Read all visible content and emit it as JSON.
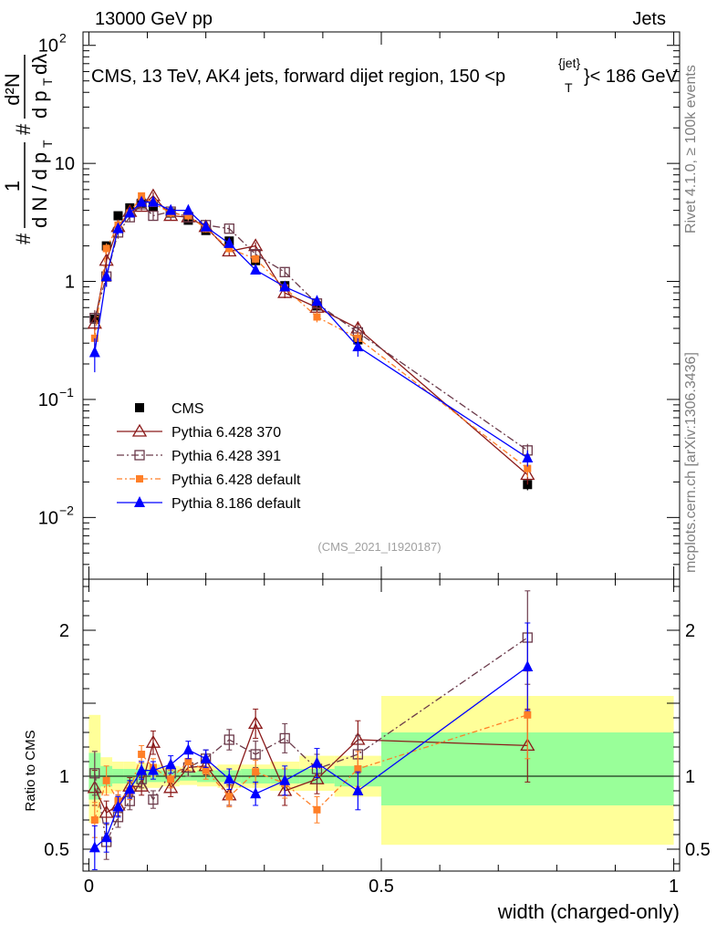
{
  "header": {
    "left": "13000 GeV pp",
    "right": "Jets"
  },
  "plot_title": "CMS, 13 TeV, AK4 jets, forward dijet region, 150 <p",
  "plot_title_sup": "{jet}",
  "plot_title_sub": "T",
  "plot_title_end": "}< 186 GeV",
  "y_axis_label": {
    "hash1": "#",
    "frac1_num": "1",
    "frac1_den": "d N / d p",
    "hash2": "#",
    "frac2_num": "d²N",
    "frac2_den": "d p",
    "dlambda": "dλ",
    "sub_t": "T"
  },
  "side_labels": {
    "rivet": "Rivet 4.1.0, ≥ 100k events",
    "mcplots": "mcplots.cern.ch [arXiv:1306.3436]"
  },
  "watermark": "(CMS_2021_I1920187)",
  "ratio_ylabel": "Ratio to CMS",
  "xlabel": "width (charged-only)",
  "colors": {
    "cms": "#000000",
    "p370": "#8b1a1a",
    "p391": "#6b3a4a",
    "pdef": "#ff7f27",
    "p8": "#0000ff",
    "band_yellow": "#ffff99",
    "band_green": "#99ff99"
  },
  "chart_data": {
    "type": "line",
    "x": [
      0.01,
      0.03,
      0.05,
      0.07,
      0.09,
      0.11,
      0.14,
      0.17,
      0.2,
      0.24,
      0.285,
      0.335,
      0.39,
      0.46,
      0.75
    ],
    "x_edges": [
      0.0,
      0.02,
      0.04,
      0.06,
      0.08,
      0.1,
      0.125,
      0.155,
      0.185,
      0.22,
      0.26,
      0.31,
      0.36,
      0.42,
      0.5,
      1.0
    ],
    "xlim": [
      -0.01,
      1.01
    ],
    "xticks": [
      0,
      0.5,
      1
    ],
    "xtick_labels": [
      "0",
      "0.5",
      "1"
    ],
    "main": {
      "yscale": "log",
      "ylim": [
        0.003,
        130
      ],
      "yticks": [
        0.01,
        0.1,
        1,
        10,
        100
      ],
      "ytick_labels": [
        {
          "base": "10",
          "exp": "−2"
        },
        {
          "base": "10",
          "exp": "−1"
        },
        {
          "base": "1",
          "exp": ""
        },
        {
          "base": "10",
          "exp": ""
        },
        {
          "base": "10",
          "exp": "2"
        }
      ]
    },
    "ratio": {
      "ylim": [
        0.35,
        2.35
      ],
      "yticks": [
        0.5,
        1,
        2
      ],
      "ytick_labels": [
        "0.5",
        "1",
        "2"
      ]
    },
    "series": [
      {
        "name": "CMS",
        "key": "cms",
        "values": [
          0.48,
          2.0,
          3.6,
          4.2,
          4.6,
          4.3,
          3.8,
          3.3,
          2.7,
          2.2,
          1.5,
          0.92,
          0.62,
          0.32,
          0.019
        ],
        "errors": [
          0.06,
          0.15,
          0.2,
          0.2,
          0.2,
          0.2,
          0.15,
          0.12,
          0.1,
          0.09,
          0.07,
          0.05,
          0.04,
          0.02,
          0.002
        ],
        "ratio": [
          1,
          1,
          1,
          1,
          1,
          1,
          1,
          1,
          1,
          1,
          1,
          1,
          1,
          1,
          1
        ],
        "ratio_errors": [
          0,
          0,
          0,
          0,
          0,
          0,
          0,
          0,
          0,
          0,
          0,
          0,
          0,
          0,
          0
        ]
      },
      {
        "name": "Pythia 6.428 370",
        "key": "p370",
        "values": [
          0.44,
          1.5,
          2.9,
          3.9,
          4.3,
          5.3,
          3.6,
          3.5,
          2.9,
          1.8,
          2.0,
          0.8,
          0.6,
          0.4,
          0.023
        ],
        "errors": [
          0.08,
          0.2,
          0.3,
          0.3,
          0.3,
          0.4,
          0.3,
          0.3,
          0.2,
          0.15,
          0.15,
          0.08,
          0.06,
          0.05,
          0.004
        ],
        "ratio": [
          0.92,
          0.75,
          0.8,
          0.93,
          0.93,
          1.23,
          0.92,
          1.06,
          1.07,
          0.87,
          1.36,
          0.9,
          0.98,
          1.25,
          1.21
        ],
        "ratio_errors": [
          0.12,
          0.08,
          0.07,
          0.06,
          0.06,
          0.08,
          0.06,
          0.06,
          0.06,
          0.07,
          0.1,
          0.1,
          0.1,
          0.13,
          0.25
        ]
      },
      {
        "name": "Pythia 6.428 391",
        "key": "p391",
        "values": [
          0.49,
          1.1,
          2.6,
          3.5,
          4.5,
          3.6,
          3.9,
          3.5,
          3.0,
          2.8,
          1.7,
          1.2,
          0.65,
          0.37,
          0.037
        ],
        "errors": [
          0.08,
          0.2,
          0.3,
          0.3,
          0.3,
          0.3,
          0.3,
          0.3,
          0.2,
          0.2,
          0.15,
          0.1,
          0.06,
          0.05,
          0.005
        ],
        "ratio": [
          1.02,
          0.55,
          0.72,
          0.83,
          0.98,
          0.84,
          1.02,
          1.06,
          1.12,
          1.25,
          1.15,
          1.26,
          1.05,
          1.15,
          1.95
        ],
        "ratio_errors": [
          0.15,
          0.12,
          0.07,
          0.06,
          0.06,
          0.06,
          0.06,
          0.06,
          0.06,
          0.07,
          0.09,
          0.1,
          0.1,
          0.13,
          0.32
        ]
      },
      {
        "name": "Pythia 6.428 default",
        "key": "pdef",
        "values": [
          0.33,
          1.9,
          3.0,
          3.8,
          5.3,
          4.6,
          3.8,
          3.6,
          2.8,
          1.9,
          1.55,
          0.88,
          0.5,
          0.33,
          0.026
        ],
        "errors": [
          0.06,
          0.2,
          0.3,
          0.3,
          0.3,
          0.3,
          0.3,
          0.3,
          0.2,
          0.15,
          0.12,
          0.08,
          0.05,
          0.04,
          0.004
        ],
        "ratio": [
          0.7,
          0.97,
          0.83,
          0.9,
          1.15,
          1.06,
          0.98,
          1.1,
          1.04,
          0.86,
          1.03,
          0.95,
          0.77,
          1.05,
          1.42
        ],
        "ratio_errors": [
          0.12,
          0.1,
          0.07,
          0.06,
          0.06,
          0.06,
          0.06,
          0.06,
          0.06,
          0.07,
          0.08,
          0.1,
          0.09,
          0.12,
          0.3
        ]
      },
      {
        "name": "Pythia 8.186 default",
        "key": "p8",
        "values": [
          0.25,
          1.1,
          2.8,
          3.8,
          4.7,
          4.7,
          4.0,
          4.0,
          2.9,
          2.1,
          1.25,
          0.9,
          0.68,
          0.28,
          0.032
        ],
        "errors": [
          0.08,
          0.2,
          0.3,
          0.3,
          0.3,
          0.3,
          0.3,
          0.3,
          0.2,
          0.15,
          0.1,
          0.08,
          0.06,
          0.05,
          0.005
        ],
        "ratio": [
          0.51,
          0.58,
          0.79,
          0.91,
          1.04,
          1.04,
          1.08,
          1.18,
          1.12,
          0.98,
          0.88,
          0.97,
          1.09,
          0.9,
          1.75
        ],
        "ratio_errors": [
          0.15,
          0.1,
          0.07,
          0.06,
          0.06,
          0.06,
          0.06,
          0.06,
          0.06,
          0.07,
          0.08,
          0.1,
          0.1,
          0.13,
          0.3
        ]
      }
    ],
    "bands": {
      "yellow": [
        [
          0.68,
          1.42
        ],
        [
          0.88,
          1.13
        ],
        [
          0.9,
          1.1
        ],
        [
          0.9,
          1.1
        ],
        [
          0.91,
          1.09
        ],
        [
          0.92,
          1.08
        ],
        [
          0.93,
          1.07
        ],
        [
          0.94,
          1.06
        ],
        [
          0.93,
          1.07
        ],
        [
          0.92,
          1.08
        ],
        [
          0.92,
          1.08
        ],
        [
          0.9,
          1.1
        ],
        [
          0.9,
          1.14
        ],
        [
          0.86,
          1.14
        ],
        [
          0.53,
          1.55
        ]
      ],
      "green": [
        [
          0.84,
          1.16
        ],
        [
          0.93,
          1.07
        ],
        [
          0.95,
          1.05
        ],
        [
          0.95,
          1.05
        ],
        [
          0.95,
          1.05
        ],
        [
          0.96,
          1.04
        ],
        [
          0.96,
          1.04
        ],
        [
          0.97,
          1.03
        ],
        [
          0.96,
          1.04
        ],
        [
          0.96,
          1.04
        ],
        [
          0.95,
          1.05
        ],
        [
          0.95,
          1.05
        ],
        [
          0.95,
          1.05
        ],
        [
          0.93,
          1.07
        ],
        [
          0.8,
          1.3
        ]
      ]
    }
  }
}
